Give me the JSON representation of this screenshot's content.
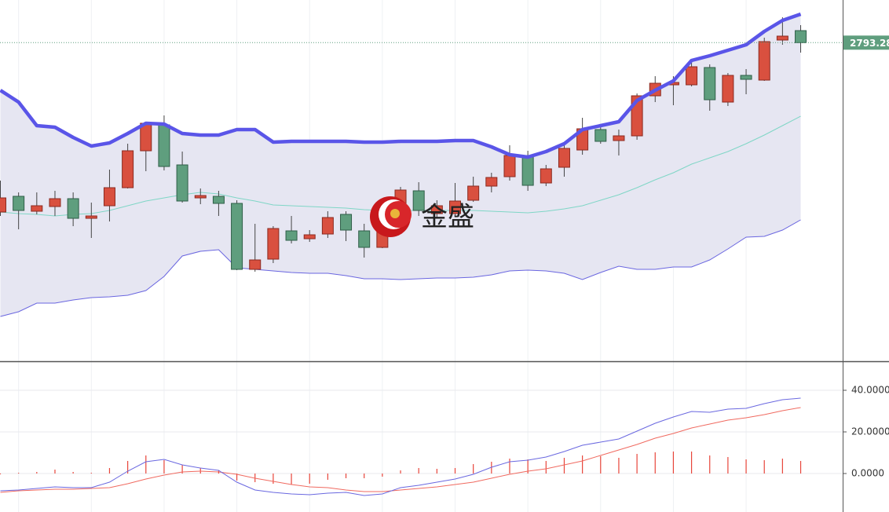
{
  "chart_data": [
    {
      "type": "candlestick",
      "ylim": [
        2631,
        2815
      ],
      "up_color": "#d9503f",
      "down_color": "#5f9e7e",
      "open": [
        2707,
        2715,
        2707.4,
        2709.8,
        2713.8,
        2703.8,
        2710.2,
        2719.4,
        2738.2,
        2751.4,
        2731,
        2714.2,
        2715,
        2711.4,
        2677.8,
        2683,
        2697.4,
        2693.4,
        2695.8,
        2705.8,
        2697.4,
        2689,
        2703,
        2717.8,
        2706.2,
        2706.2,
        2713,
        2720.2,
        2725,
        2735.8,
        2721.8,
        2729.8,
        2738.6,
        2749,
        2743.4,
        2745.8,
        2766.2,
        2771.8,
        2771.8,
        2780.6,
        2763,
        2776.6,
        2774.2,
        2794.6,
        2799.4
      ],
      "high": [
        2723,
        2717,
        2717,
        2717.8,
        2717,
        2711.8,
        2728.6,
        2741.8,
        2753,
        2756.2,
        2737.8,
        2719,
        2717.8,
        2713,
        2701,
        2699.8,
        2705,
        2697.8,
        2707.4,
        2707.4,
        2701,
        2706.2,
        2719.8,
        2722.2,
        2713,
        2721.8,
        2725,
        2727,
        2741,
        2738.2,
        2731,
        2742.2,
        2755,
        2751.8,
        2749,
        2767.4,
        2776.2,
        2776.2,
        2783.8,
        2782.2,
        2777.8,
        2779.8,
        2795.8,
        2806.2,
        2802.2
      ],
      "low": [
        2705,
        2698.2,
        2705.8,
        2705,
        2699.8,
        2693.8,
        2702.2,
        2719,
        2727.8,
        2728.2,
        2711.8,
        2711,
        2705,
        2677.4,
        2676.6,
        2681,
        2691,
        2691.8,
        2693.8,
        2692.2,
        2683.8,
        2688.6,
        2702.2,
        2705,
        2703.8,
        2705,
        2712.2,
        2717,
        2723,
        2717.8,
        2720.2,
        2725,
        2736.2,
        2741.8,
        2735.8,
        2743.8,
        2763,
        2761.4,
        2771,
        2758.6,
        2761,
        2767,
        2773.8,
        2792.2,
        2788.2
      ],
      "close": [
        2714.2,
        2707.8,
        2710.2,
        2713.8,
        2703.8,
        2705,
        2719.4,
        2738.2,
        2752.2,
        2730.2,
        2712.6,
        2715.4,
        2711.4,
        2677.8,
        2682.6,
        2698.6,
        2692.6,
        2695.4,
        2704.2,
        2697.8,
        2689,
        2703,
        2718.2,
        2707.8,
        2710.2,
        2712.6,
        2720.2,
        2724.6,
        2735.8,
        2720.6,
        2729,
        2739.4,
        2749.4,
        2743,
        2745.8,
        2766.2,
        2772.6,
        2773,
        2781,
        2764.2,
        2776.6,
        2774.6,
        2793.8,
        2796.6,
        2793.28
      ],
      "bands": {
        "upper_color": "#5a55e8",
        "middle_color": "#7fd6c6",
        "lower_color": "#6a66e0",
        "fill_color": "#e6e6f2",
        "upper": [
          2769,
          2763,
          2751,
          2750.2,
          2745,
          2740.6,
          2742.2,
          2747,
          2752.2,
          2751.8,
          2747,
          2746.2,
          2746.2,
          2749,
          2749,
          2742.6,
          2743,
          2743,
          2743,
          2743,
          2742.6,
          2742.6,
          2743,
          2743,
          2743,
          2743.4,
          2743.4,
          2740.2,
          2736.2,
          2735,
          2737.8,
          2741.8,
          2749,
          2751,
          2753,
          2763.8,
          2769,
          2773.8,
          2784.2,
          2786.6,
          2789.4,
          2792.2,
          2799,
          2804.6,
          2807.8
        ],
        "middle": [
          2707,
          2706.2,
          2705.8,
          2705,
          2705.8,
          2706.2,
          2707.8,
          2710.2,
          2712.6,
          2714.2,
          2715.8,
          2717,
          2716.2,
          2714.2,
          2712.6,
          2710.6,
          2710.2,
          2709.8,
          2709.4,
          2709,
          2708.2,
          2707.8,
          2707.8,
          2707.8,
          2707.8,
          2707.8,
          2707.8,
          2707.4,
          2707,
          2706.6,
          2707.4,
          2708.6,
          2710.2,
          2713,
          2715.8,
          2719.4,
          2723.4,
          2727,
          2731.4,
          2734.6,
          2737.8,
          2741.8,
          2746.2,
          2751,
          2755.8
        ],
        "lower": [
          2653.8,
          2656.2,
          2660.6,
          2660.6,
          2662.2,
          2663.4,
          2663.8,
          2664.6,
          2667,
          2674.2,
          2684.6,
          2687,
          2687.8,
          2678.6,
          2677.8,
          2677,
          2676.2,
          2675.8,
          2675.8,
          2674.6,
          2673,
          2673,
          2672.6,
          2673,
          2673.4,
          2673.4,
          2673.8,
          2675,
          2677,
          2677.4,
          2677,
          2675.8,
          2672.6,
          2676.2,
          2679.4,
          2677.8,
          2677.8,
          2679,
          2679,
          2682.6,
          2688.2,
          2694.2,
          2694.6,
          2697.8,
          2703
        ]
      },
      "last_price_color": "#5f9e7e",
      "watermark": "金盛"
    },
    {
      "type": "macd",
      "ylim": [
        -18.49,
        53.58
      ],
      "yticks": [
        {
          "value": 0,
          "label": "0.0000"
        },
        {
          "value": 20,
          "label": "20.0000"
        },
        {
          "value": 40,
          "label": "40.0000"
        }
      ],
      "dif_color": "#6a68e0",
      "dea_color": "#f06a60",
      "hist_color": "#e8453a",
      "dif": [
        -8.3,
        -7.92,
        -7.17,
        -6.42,
        -6.79,
        -6.79,
        -4.15,
        1.13,
        5.66,
        6.79,
        4.15,
        2.64,
        1.51,
        -4.15,
        -7.92,
        -9.06,
        -9.81,
        -10.19,
        -9.43,
        -9.06,
        -10.57,
        -9.81,
        -6.79,
        -5.66,
        -4.15,
        -2.64,
        -0.38,
        3.02,
        5.66,
        6.42,
        7.92,
        10.57,
        13.58,
        15.09,
        16.6,
        20.38,
        24.15,
        27.17,
        29.81,
        29.43,
        30.94,
        31.32,
        33.58,
        35.47,
        36.23
      ],
      "dea": [
        -9.06,
        -8.3,
        -7.92,
        -7.55,
        -7.55,
        -7.17,
        -6.79,
        -4.91,
        -2.64,
        -0.75,
        0.75,
        1.13,
        0.75,
        -0.38,
        -2.26,
        -3.77,
        -5.28,
        -6.42,
        -6.79,
        -7.92,
        -8.68,
        -8.68,
        -7.92,
        -7.17,
        -6.42,
        -5.28,
        -4.15,
        -2.26,
        -0.38,
        1.13,
        2.26,
        4.15,
        6.04,
        8.68,
        11.32,
        13.96,
        16.98,
        19.25,
        21.89,
        23.77,
        25.66,
        26.79,
        28.3,
        30.19,
        31.7
      ],
      "hist": [
        -0.38,
        0.38,
        0.75,
        1.89,
        0.75,
        0.38,
        2.64,
        6.04,
        8.68,
        6.42,
        4.15,
        2.64,
        1.51,
        -3.4,
        -4.15,
        -4.91,
        -5.28,
        -4.91,
        -3.02,
        -2.26,
        -2.26,
        -1.51,
        1.51,
        2.64,
        2.26,
        2.64,
        4.53,
        5.66,
        7.17,
        6.79,
        6.04,
        7.55,
        8.68,
        8.3,
        7.55,
        9.43,
        10.19,
        10.57,
        10.57,
        8.68,
        7.92,
        6.79,
        6.42,
        7.17,
        6.04
      ]
    }
  ]
}
